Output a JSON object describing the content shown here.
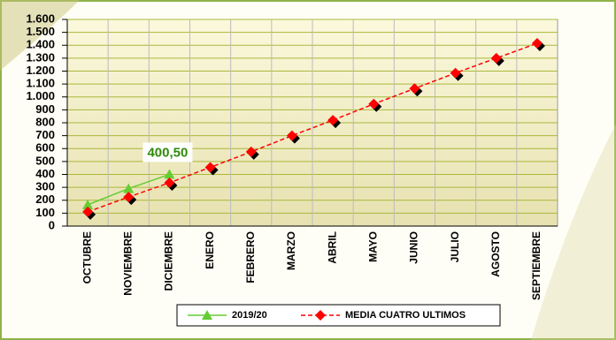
{
  "chart_data": {
    "type": "line",
    "categories": [
      "OCTUBRE",
      "NOVIEMBRE",
      "DICIEMBRE",
      "ENERO",
      "FEBRERO",
      "MARZO",
      "ABRIL",
      "MAYO",
      "JUNIO",
      "JULIO",
      "AGOSTO",
      "SEPTIEMBRE"
    ],
    "series": [
      {
        "name": "2019/20",
        "color": "#66cc33",
        "marker": "triangle",
        "values": [
          165,
          290,
          400.5,
          null,
          null,
          null,
          null,
          null,
          null,
          null,
          null,
          null
        ],
        "value_labels": [
          null,
          null,
          "400,50",
          null,
          null,
          null,
          null,
          null,
          null,
          null,
          null,
          null
        ]
      },
      {
        "name": "MEDIA CUATRO ULTIMOS",
        "color": "#ff0000",
        "marker": "diamond",
        "dashed": true,
        "values": [
          110,
          225,
          335,
          455,
          575,
          700,
          820,
          945,
          1065,
          1185,
          1300,
          1415
        ]
      }
    ],
    "ylim": [
      0,
      1600
    ],
    "yticks": [
      0,
      100,
      200,
      300,
      400,
      500,
      600,
      700,
      800,
      900,
      {
        "value": 1000,
        "label": "1.000"
      },
      {
        "value": 1100,
        "label": "1.100"
      },
      {
        "value": 1200,
        "label": "1.200"
      },
      {
        "value": 1300,
        "label": "1.300"
      },
      {
        "value": 1400,
        "label": "1.400"
      },
      {
        "value": 1500,
        "label": "1.500"
      },
      {
        "value": 1600,
        "label": "1.600"
      }
    ],
    "grid": true,
    "legend": "bottom"
  }
}
